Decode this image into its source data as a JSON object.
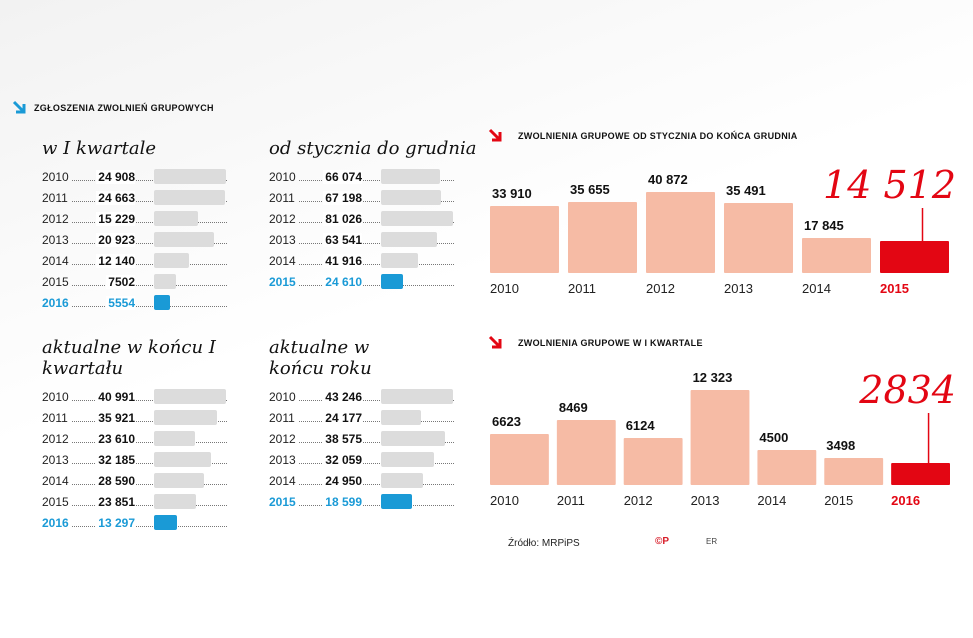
{
  "header": {
    "title": "Zgłoszenia zwolnień grupowych"
  },
  "small_panels": [
    {
      "title": "w I kwartale",
      "rows": [
        {
          "year": "2010",
          "label": "24 908",
          "value": 24908
        },
        {
          "year": "2011",
          "label": "24 663",
          "value": 24663
        },
        {
          "year": "2012",
          "label": "15 229",
          "value": 15229
        },
        {
          "year": "2013",
          "label": "20 923",
          "value": 20923
        },
        {
          "year": "2014",
          "label": "12 140",
          "value": 12140
        },
        {
          "year": "2015",
          "label": "7502",
          "value": 7502
        },
        {
          "year": "2016",
          "label": "5554",
          "value": 5554,
          "highlight": true
        }
      ]
    },
    {
      "title": "od stycznia do grudnia",
      "rows": [
        {
          "year": "2010",
          "label": "66 074",
          "value": 66074
        },
        {
          "year": "2011",
          "label": "67 198",
          "value": 67198
        },
        {
          "year": "2012",
          "label": "81 026",
          "value": 81026
        },
        {
          "year": "2013",
          "label": "63 541",
          "value": 63541
        },
        {
          "year": "2014",
          "label": "41 916",
          "value": 41916
        },
        {
          "year": "2015",
          "label": "24 610",
          "value": 24610,
          "highlight": true
        }
      ]
    },
    {
      "title": "aktualne w końcu I kwartału",
      "rows": [
        {
          "year": "2010",
          "label": "40 991",
          "value": 40991
        },
        {
          "year": "2011",
          "label": "35 921",
          "value": 35921
        },
        {
          "year": "2012",
          "label": "23 610",
          "value": 23610
        },
        {
          "year": "2013",
          "label": "32 185",
          "value": 32185
        },
        {
          "year": "2014",
          "label": "28 590",
          "value": 28590
        },
        {
          "year": "2015",
          "label": "23 851",
          "value": 23851
        },
        {
          "year": "2016",
          "label": "13 297",
          "value": 13297,
          "highlight": true
        }
      ]
    },
    {
      "title": "aktualne w końcu roku",
      "rows": [
        {
          "year": "2010",
          "label": "43 246",
          "value": 43246
        },
        {
          "year": "2011",
          "label": "24 177",
          "value": 24177
        },
        {
          "year": "2012",
          "label": "38 575",
          "value": 38575
        },
        {
          "year": "2013",
          "label": "32 059",
          "value": 32059
        },
        {
          "year": "2014",
          "label": "24 950",
          "value": 24950
        },
        {
          "year": "2015",
          "label": "18 599",
          "value": 18599,
          "highlight": true
        }
      ]
    }
  ],
  "chart_data": [
    {
      "type": "bar",
      "title": "Zwolnienia grupowe od stycznia do końca grudnia",
      "categories": [
        "2010",
        "2011",
        "2012",
        "2013",
        "2014",
        "2015"
      ],
      "values": [
        33910,
        35655,
        40872,
        35491,
        17845,
        14512
      ],
      "labels": [
        "33 910",
        "35 655",
        "40 872",
        "35 491",
        "17 845",
        "14 512"
      ],
      "highlight_index": 5,
      "color": "#f6bba5",
      "highlight_color": "#e30613",
      "ylim": [
        0,
        45000
      ]
    },
    {
      "type": "bar",
      "title": "Zwolnienia grupowe w I kwartale",
      "categories": [
        "2010",
        "2011",
        "2012",
        "2013",
        "2014",
        "2015",
        "2016"
      ],
      "values": [
        6623,
        8469,
        6124,
        12323,
        4500,
        3498,
        2834
      ],
      "labels": [
        "6623",
        "8469",
        "6124",
        "12 323",
        "4500",
        "3498",
        "2834"
      ],
      "highlight_index": 6,
      "color": "#f6bba5",
      "highlight_color": "#e30613",
      "ylim": [
        0,
        13000
      ]
    }
  ],
  "footer": {
    "source": "Źródło: MRPiPS",
    "logo_cp": "©P",
    "logo_er": "ER"
  }
}
